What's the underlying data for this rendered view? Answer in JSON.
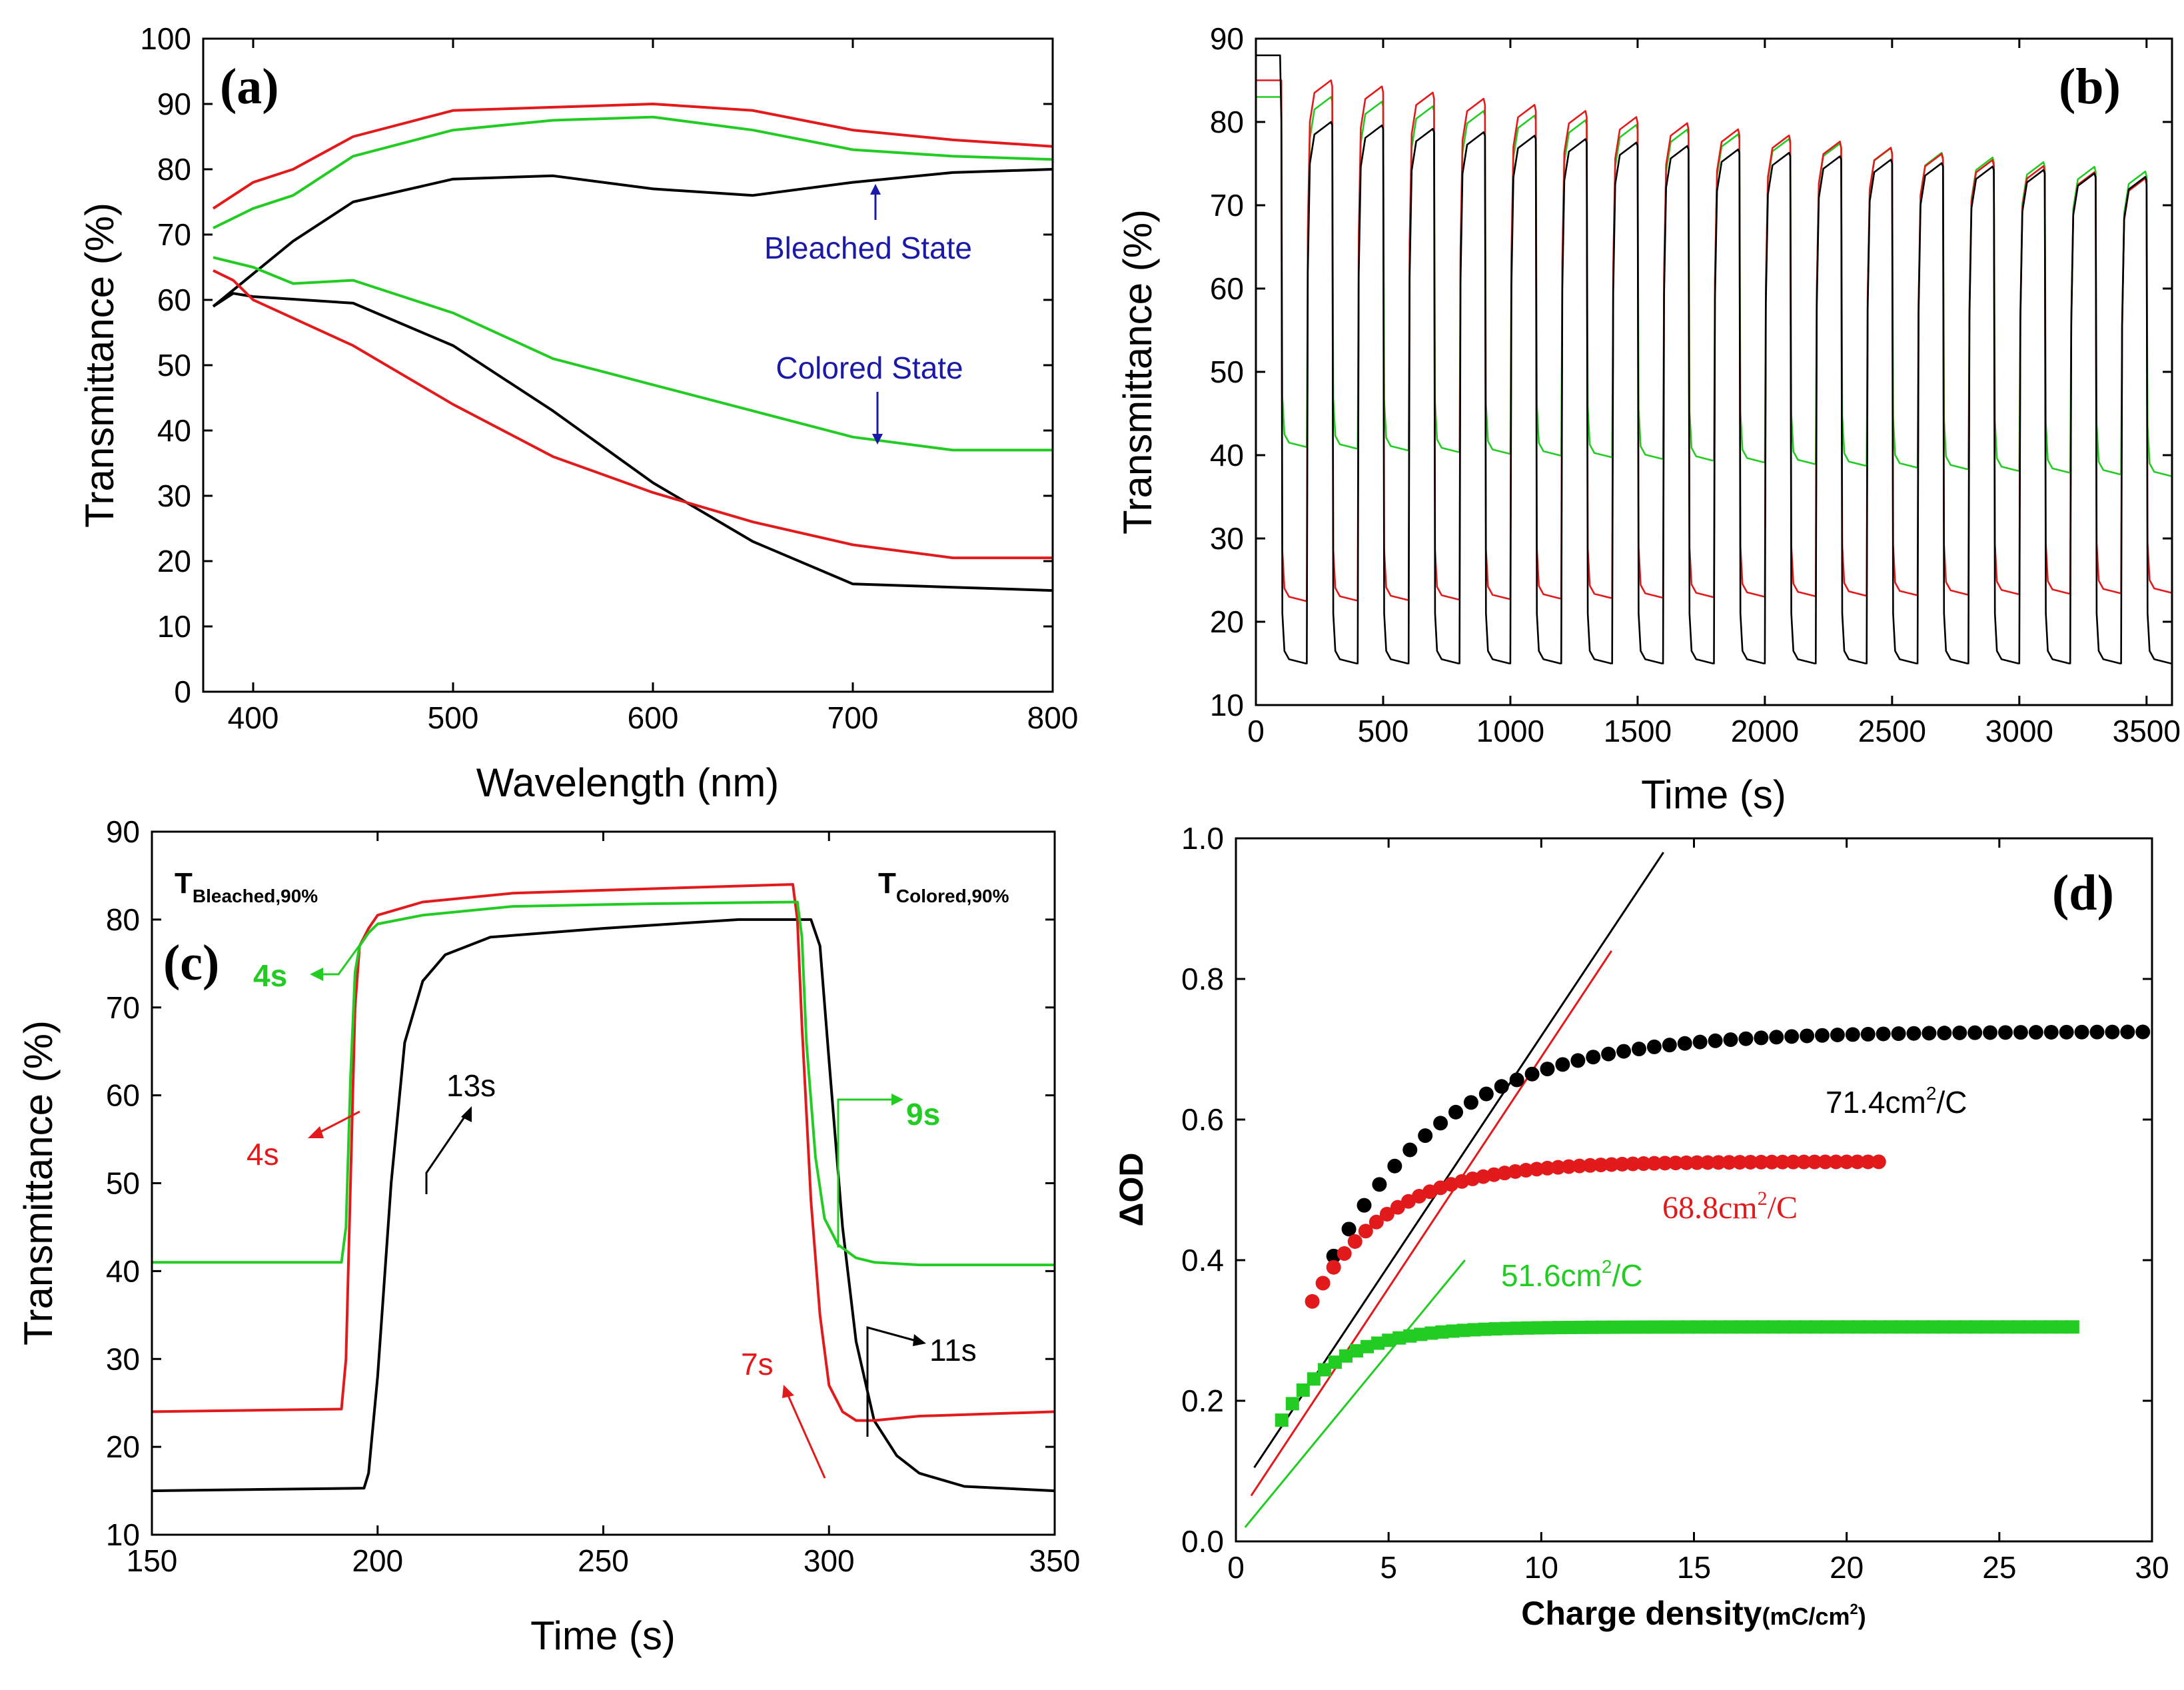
{
  "chart_data": [
    {
      "panel": "(a)",
      "type": "line",
      "xlabel": "Wavelength (nm)",
      "ylabel": "Transmittance (%)",
      "xlim": [
        375,
        800
      ],
      "ylim": [
        0,
        100
      ],
      "xticks": [
        400,
        500,
        600,
        700,
        800
      ],
      "yticks": [
        0,
        10,
        20,
        30,
        40,
        50,
        60,
        70,
        80,
        90,
        100
      ],
      "annotations": [
        "Bleached State",
        "Colored State"
      ],
      "colors": {
        "black": "#000000",
        "red": "#e31a1c",
        "green": "#22cc22",
        "annotation": "#1a1aa6"
      },
      "series": [
        {
          "name": "black bleached",
          "color": "black",
          "x": [
            380,
            400,
            420,
            450,
            500,
            550,
            600,
            650,
            700,
            750,
            800
          ],
          "y": [
            59,
            64,
            69,
            75,
            78.5,
            79,
            77,
            76,
            78,
            79.5,
            80
          ]
        },
        {
          "name": "red bleached",
          "color": "red",
          "x": [
            380,
            400,
            420,
            450,
            500,
            550,
            600,
            650,
            700,
            750,
            800
          ],
          "y": [
            74,
            78,
            80,
            85,
            89,
            89.5,
            90,
            89,
            86,
            84.5,
            83.5
          ]
        },
        {
          "name": "green bleached",
          "color": "green",
          "x": [
            380,
            400,
            420,
            450,
            500,
            550,
            600,
            650,
            700,
            750,
            800
          ],
          "y": [
            71,
            74,
            76,
            82,
            86,
            87.5,
            88,
            86,
            83,
            82,
            81.5
          ]
        },
        {
          "name": "black colored",
          "color": "black",
          "x": [
            380,
            390,
            400,
            450,
            500,
            550,
            600,
            650,
            700,
            750,
            800
          ],
          "y": [
            59,
            61,
            60.5,
            59.5,
            53,
            43,
            32,
            23,
            16.5,
            16,
            15.5
          ]
        },
        {
          "name": "red colored",
          "color": "red",
          "x": [
            380,
            390,
            400,
            450,
            500,
            550,
            600,
            650,
            700,
            750,
            800
          ],
          "y": [
            64.5,
            63,
            60,
            53,
            44,
            36,
            30.5,
            26,
            22.5,
            20.5,
            20.5
          ]
        },
        {
          "name": "green colored",
          "color": "green",
          "x": [
            380,
            400,
            420,
            450,
            500,
            550,
            600,
            650,
            700,
            750,
            800
          ],
          "y": [
            66.5,
            65,
            62.5,
            63,
            58,
            51,
            47,
            43,
            39,
            37,
            37
          ]
        }
      ]
    },
    {
      "panel": "(b)",
      "type": "line",
      "xlabel": "Time (s)",
      "ylabel": "Transmittance (%)",
      "xlim": [
        0,
        3600
      ],
      "ylim": [
        10,
        90
      ],
      "xticks": [
        0,
        500,
        1000,
        1500,
        2000,
        2500,
        3000,
        3500
      ],
      "yticks": [
        10,
        20,
        30,
        40,
        50,
        60,
        70,
        80,
        90
      ],
      "period_s": 200,
      "cycles": 18,
      "series": [
        {
          "name": "black",
          "color": "black",
          "bleached_start": 80,
          "bleached_end": 73,
          "colored": 15
        },
        {
          "name": "red",
          "color": "red",
          "bleached_start": 85,
          "bleached_end": 72.5,
          "colored_start": 22.5,
          "colored_end": 23.5
        },
        {
          "name": "green",
          "color": "green",
          "bleached_start": 83,
          "bleached_end": 73.5,
          "colored_start": 41,
          "colored_end": 37.5
        }
      ]
    },
    {
      "panel": "(c)",
      "type": "line",
      "xlabel": "Time (s)",
      "ylabel": "Transmittance (%)",
      "xlim": [
        150,
        350
      ],
      "ylim": [
        10,
        90
      ],
      "xticks": [
        150,
        200,
        250,
        300,
        350
      ],
      "yticks": [
        10,
        20,
        30,
        40,
        50,
        60,
        70,
        80,
        90
      ],
      "title_left": {
        "main": "T",
        "sub": "Bleached,90%"
      },
      "title_right": {
        "main": "T",
        "sub": "Colored,90%"
      },
      "annotations": [
        {
          "text": "4s",
          "color": "green"
        },
        {
          "text": "4s",
          "color": "red"
        },
        {
          "text": "13s",
          "color": "black"
        },
        {
          "text": "9s",
          "color": "green"
        },
        {
          "text": "7s",
          "color": "red"
        },
        {
          "text": "11s",
          "color": "black"
        }
      ],
      "series": [
        {
          "name": "black",
          "color": "black",
          "x": [
            150,
            197,
            198,
            200,
            203,
            206,
            210,
            215,
            225,
            250,
            280,
            296,
            298,
            300,
            303,
            306,
            310,
            315,
            320,
            330,
            350
          ],
          "y": [
            15,
            15.3,
            17,
            28,
            50,
            66,
            73,
            76,
            78,
            79,
            80,
            80,
            77,
            64,
            45,
            32,
            23,
            19,
            17,
            15.5,
            15
          ]
        },
        {
          "name": "red",
          "color": "red",
          "x": [
            150,
            192,
            193,
            194,
            195,
            196,
            198,
            200,
            210,
            230,
            260,
            292,
            293,
            294,
            296,
            298,
            300,
            303,
            306,
            310,
            320,
            350
          ],
          "y": [
            24,
            24.3,
            30,
            50,
            70,
            77,
            79,
            80.5,
            82,
            83,
            83.5,
            84,
            80,
            68,
            48,
            35,
            27,
            24,
            23,
            23,
            23.5,
            24
          ]
        },
        {
          "name": "green",
          "color": "green",
          "x": [
            150,
            192,
            193,
            194,
            195,
            196,
            198,
            200,
            210,
            230,
            260,
            293,
            294,
            295,
            297,
            299,
            302,
            306,
            310,
            320,
            350
          ],
          "y": [
            41,
            41,
            45,
            62,
            74,
            77,
            78.5,
            79.5,
            80.5,
            81.5,
            81.8,
            82,
            78,
            66,
            53,
            46,
            43,
            41.5,
            41,
            40.7,
            40.7
          ]
        }
      ]
    },
    {
      "panel": "(d)",
      "type": "scatter",
      "xlabel_main": "Charge density",
      "xlabel_unit": "(mC/cm",
      "xlabel_sup": "2",
      "xlabel_close": ")",
      "ylabel": "ΔOD",
      "xlim": [
        0,
        30
      ],
      "ylim": [
        0,
        1.0
      ],
      "xticks": [
        0,
        5,
        10,
        15,
        20,
        25,
        30
      ],
      "yticks": [
        "0.0",
        "0.2",
        "0.4",
        "0.6",
        "0.8",
        "1.0"
      ],
      "annotations": [
        {
          "text": "71.4cm",
          "sup": "2",
          "tail": "/C",
          "color": "black"
        },
        {
          "text": "68.8cm",
          "sup": "2",
          "tail": "/C",
          "color": "red"
        },
        {
          "text": "51.6cm",
          "sup": "2",
          "tail": "/C",
          "color": "green"
        }
      ],
      "fits": [
        {
          "color": "black",
          "x": [
            0.6,
            14
          ],
          "y": [
            0.105,
            0.98
          ]
        },
        {
          "color": "red",
          "x": [
            0.5,
            12.3
          ],
          "y": [
            0.065,
            0.84
          ]
        },
        {
          "color": "green",
          "x": [
            0.3,
            7.5
          ],
          "y": [
            0.02,
            0.4
          ]
        }
      ],
      "series": [
        {
          "name": "black",
          "color": "black",
          "marker": "circle",
          "x_start": 3.2,
          "x_end": 30,
          "step": 0.5,
          "ymax": 0.725,
          "tau": 3.9
        },
        {
          "name": "red",
          "color": "red",
          "marker": "circle",
          "x_start": 2.5,
          "x_end": 21.3,
          "step": 0.35,
          "ymax": 0.54,
          "tau": 2.5
        },
        {
          "name": "green",
          "color": "green",
          "marker": "square",
          "x_start": 1.5,
          "x_end": 27.5,
          "step": 0.35,
          "ymax": 0.305,
          "tau": 1.8
        }
      ]
    }
  ],
  "panel_labels": [
    "(a)",
    "(b)",
    "(c)",
    "(d)"
  ]
}
